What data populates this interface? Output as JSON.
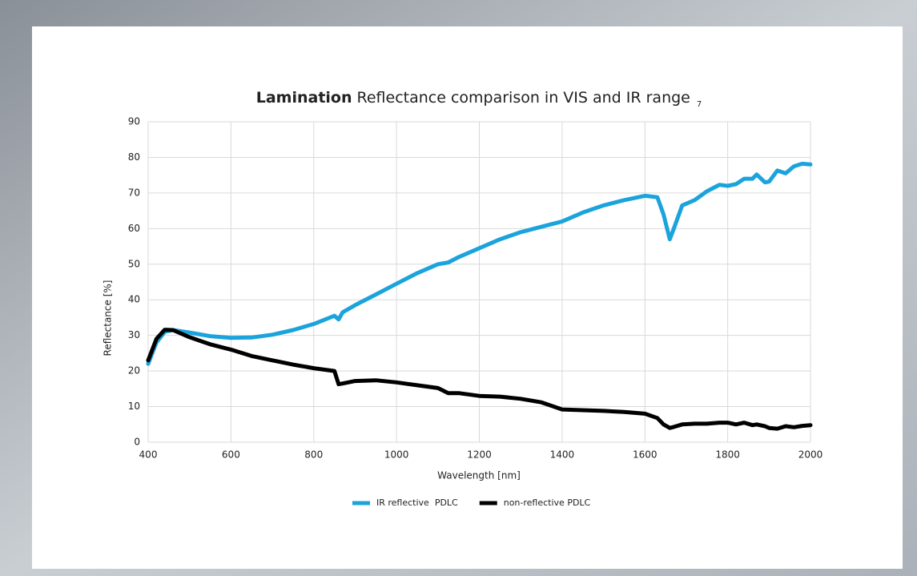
{
  "chart_data": {
    "type": "line",
    "title_bold": "Lamination",
    "title": "Reflectance comparison in VIS and IR range",
    "title_note": "7",
    "x_label": "Wavelength [nm]",
    "y_label": "Reflectance [%]",
    "x": [
      400,
      420,
      440,
      460,
      500,
      550,
      600,
      650,
      700,
      750,
      800,
      850,
      860,
      870,
      900,
      950,
      1000,
      1050,
      1100,
      1125,
      1150,
      1200,
      1250,
      1300,
      1350,
      1400,
      1450,
      1500,
      1550,
      1600,
      1630,
      1645,
      1660,
      1670,
      1690,
      1720,
      1750,
      1780,
      1800,
      1820,
      1840,
      1860,
      1870,
      1890,
      1900,
      1920,
      1940,
      1960,
      1980,
      2000
    ],
    "series": [
      {
        "name": "IR reflective  PDLC",
        "color": "#1ba3dc",
        "values": [
          22,
          28,
          31,
          31.5,
          30.8,
          29.8,
          29.3,
          29.4,
          30.2,
          31.5,
          33.2,
          35.5,
          34.5,
          36.5,
          38.5,
          41.5,
          44.5,
          47.5,
          50,
          50.5,
          52,
          54.5,
          57,
          59,
          60.5,
          62,
          64.5,
          66.5,
          68,
          69.2,
          68.8,
          64,
          57,
          60,
          66.5,
          68,
          70.5,
          72.3,
          72,
          72.5,
          74,
          74,
          75.2,
          73,
          73.2,
          76.3,
          75.5,
          77.5,
          78.2,
          78
        ]
      },
      {
        "name": "non-reflective PDLC",
        "color": "#000000",
        "values": [
          23,
          29,
          31.6,
          31.5,
          29.5,
          27.5,
          26,
          24.2,
          23,
          21.8,
          20.8,
          20,
          16.3,
          16.5,
          17.2,
          17.4,
          16.8,
          16,
          15.2,
          13.8,
          13.8,
          13,
          12.8,
          12.2,
          11.2,
          9.2,
          9,
          8.8,
          8.5,
          8,
          6.8,
          5,
          4,
          4.3,
          5,
          5.2,
          5.2,
          5.5,
          5.5,
          5,
          5.5,
          4.8,
          5,
          4.5,
          4,
          3.8,
          4.5,
          4.2,
          4.6,
          4.8
        ]
      }
    ],
    "xlim": [
      400,
      2000
    ],
    "xticks": [
      400,
      600,
      800,
      1000,
      1200,
      1400,
      1600,
      1800,
      2000
    ],
    "ylim": [
      0,
      90
    ],
    "yticks": [
      0,
      10,
      20,
      30,
      40,
      50,
      60,
      70,
      80,
      90
    ],
    "grid": true,
    "legend": "bottom"
  }
}
